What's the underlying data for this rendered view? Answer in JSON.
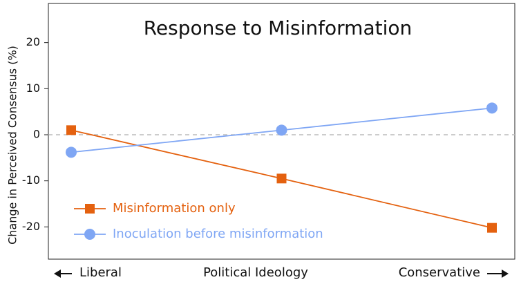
{
  "chart_data": {
    "type": "line",
    "title": "Response to Misinformation",
    "y_label": "Change in Perceived Consensus (%)",
    "x_label": "Political Ideology",
    "x_left_label": "Liberal",
    "x_right_label": "Conservative",
    "categories": [
      null,
      null,
      null
    ],
    "series": [
      {
        "name": "Misinformation only",
        "color": "#e4610f",
        "marker": "square",
        "values": [
          1,
          -9.5,
          -20.2
        ]
      },
      {
        "name": "Inoculation before misinformation",
        "color": "#7fa6f4",
        "marker": "circle",
        "values": [
          -3.8,
          1,
          5.8
        ]
      }
    ],
    "ylim": [
      -27,
      28.5
    ],
    "yticks": [
      -20,
      -10,
      0,
      10,
      20
    ],
    "zero_line": true,
    "legend": "lower left"
  }
}
